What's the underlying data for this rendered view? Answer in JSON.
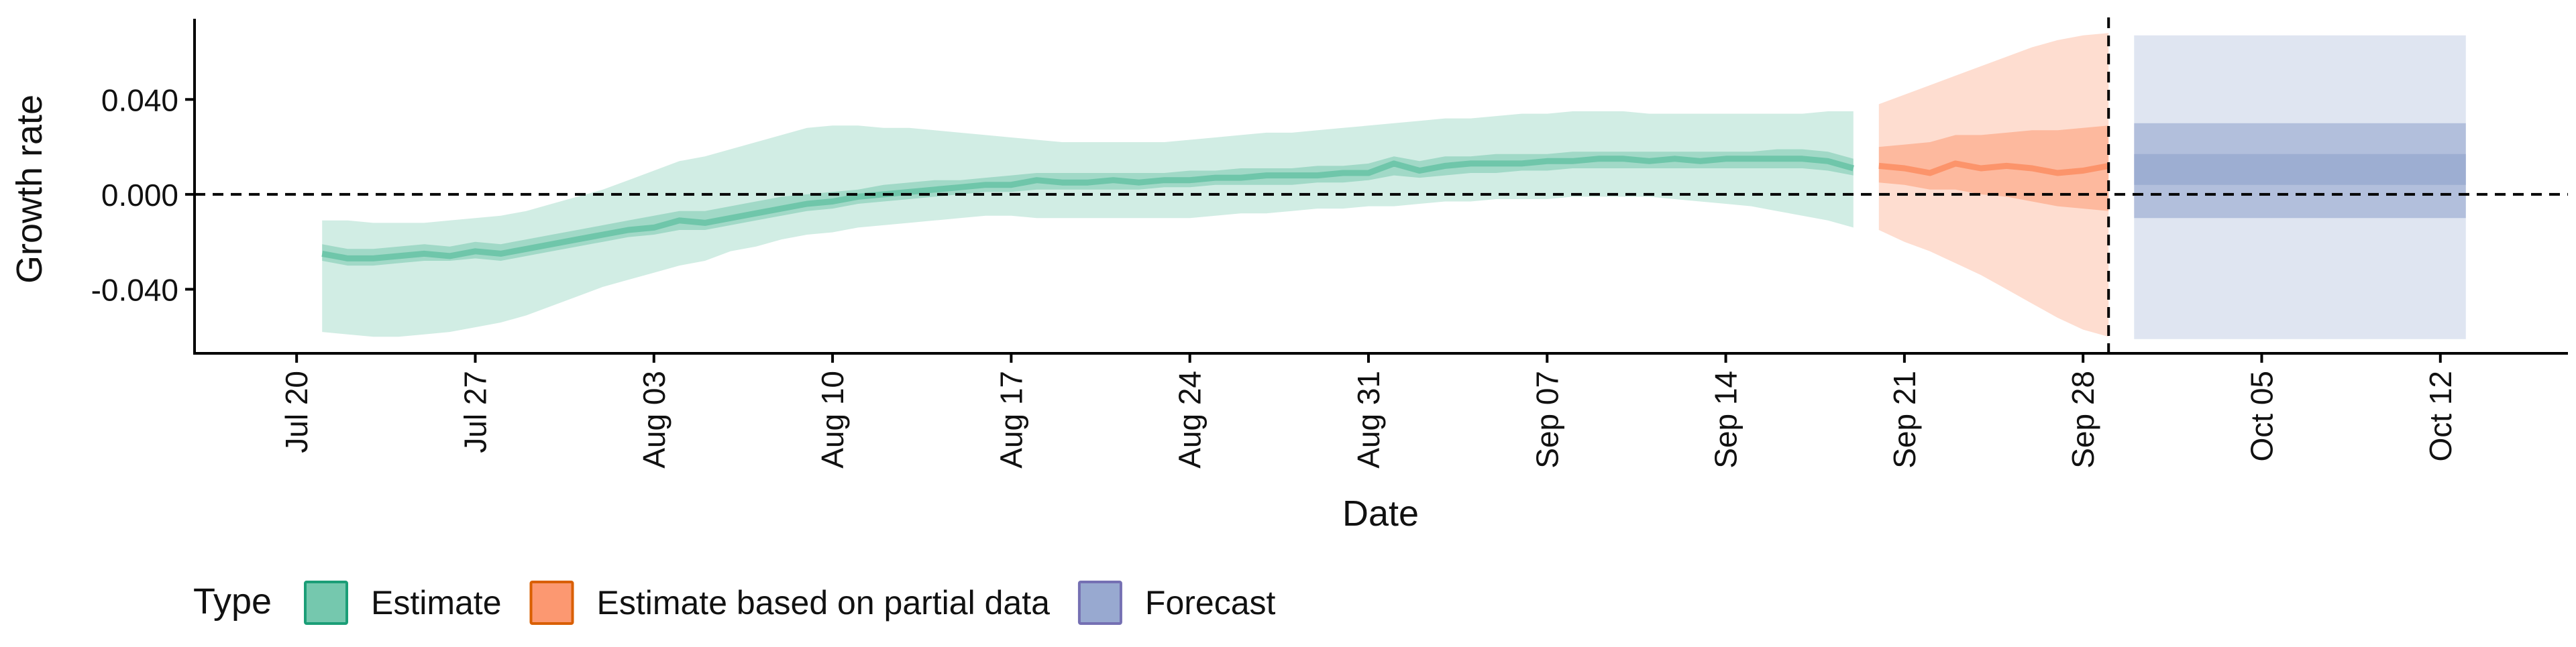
{
  "chart_data": {
    "type": "area",
    "title": "",
    "xlabel": "Date",
    "ylabel": "Growth rate",
    "x_type": "date",
    "xlim": [
      "2020-07-16",
      "2020-10-17"
    ],
    "ylim": [
      -0.067,
      0.074
    ],
    "x_ticks": [
      "2020-07-20",
      "2020-07-27",
      "2020-08-03",
      "2020-08-10",
      "2020-08-17",
      "2020-08-24",
      "2020-08-31",
      "2020-09-07",
      "2020-09-14",
      "2020-09-21",
      "2020-09-28",
      "2020-10-05",
      "2020-10-12"
    ],
    "x_tick_labels": [
      "Jul 20",
      "Jul 27",
      "Aug 03",
      "Aug 10",
      "Aug 17",
      "Aug 24",
      "Aug 31",
      "Sep 07",
      "Sep 14",
      "Sep 21",
      "Sep 28",
      "Oct 05",
      "Oct 12"
    ],
    "y_ticks": [
      0.04,
      0.0,
      -0.04
    ],
    "y_tick_labels": [
      "0.040",
      "0.000",
      "-0.040"
    ],
    "grid": false,
    "reference_lines": [
      {
        "orientation": "horizontal",
        "value": 0.0,
        "style": "dashed"
      },
      {
        "orientation": "vertical",
        "value": "2020-09-29",
        "style": "dashed"
      }
    ],
    "legend": {
      "position": "bottom-left",
      "title": "Type",
      "entries": [
        {
          "label": "Estimate",
          "color": "#1b9e77"
        },
        {
          "label": "Estimate based on partial data",
          "color": "#d95f02"
        },
        {
          "label": "Forecast",
          "color": "#7570b3"
        }
      ]
    },
    "series": [
      {
        "name": "Estimate",
        "fill": "#66c2a5",
        "stroke": "#1b9e77",
        "x": [
          "2020-07-21",
          "2020-07-22",
          "2020-07-23",
          "2020-07-24",
          "2020-07-25",
          "2020-07-26",
          "2020-07-27",
          "2020-07-28",
          "2020-07-29",
          "2020-07-30",
          "2020-07-31",
          "2020-08-01",
          "2020-08-02",
          "2020-08-03",
          "2020-08-04",
          "2020-08-05",
          "2020-08-06",
          "2020-08-07",
          "2020-08-08",
          "2020-08-09",
          "2020-08-10",
          "2020-08-11",
          "2020-08-12",
          "2020-08-13",
          "2020-08-14",
          "2020-08-15",
          "2020-08-16",
          "2020-08-17",
          "2020-08-18",
          "2020-08-19",
          "2020-08-20",
          "2020-08-21",
          "2020-08-22",
          "2020-08-23",
          "2020-08-24",
          "2020-08-25",
          "2020-08-26",
          "2020-08-27",
          "2020-08-28",
          "2020-08-29",
          "2020-08-30",
          "2020-08-31",
          "2020-09-01",
          "2020-09-02",
          "2020-09-03",
          "2020-09-04",
          "2020-09-05",
          "2020-09-06",
          "2020-09-07",
          "2020-09-08",
          "2020-09-09",
          "2020-09-10",
          "2020-09-11",
          "2020-09-12",
          "2020-09-13",
          "2020-09-14",
          "2020-09-15",
          "2020-09-16",
          "2020-09-17",
          "2020-09-18",
          "2020-09-19"
        ],
        "median": [
          -0.025,
          -0.027,
          -0.027,
          -0.026,
          -0.025,
          -0.026,
          -0.024,
          -0.025,
          -0.023,
          -0.021,
          -0.019,
          -0.017,
          -0.015,
          -0.014,
          -0.011,
          -0.012,
          -0.01,
          -0.008,
          -0.006,
          -0.004,
          -0.003,
          -0.001,
          0.0,
          0.001,
          0.002,
          0.003,
          0.004,
          0.004,
          0.006,
          0.005,
          0.005,
          0.006,
          0.005,
          0.006,
          0.006,
          0.007,
          0.007,
          0.008,
          0.008,
          0.008,
          0.009,
          0.009,
          0.013,
          0.01,
          0.012,
          0.013,
          0.013,
          0.013,
          0.014,
          0.014,
          0.015,
          0.015,
          0.014,
          0.015,
          0.014,
          0.015,
          0.015,
          0.015,
          0.015,
          0.014,
          0.011
        ],
        "lower_50": [
          -0.028,
          -0.03,
          -0.03,
          -0.029,
          -0.028,
          -0.028,
          -0.027,
          -0.028,
          -0.026,
          -0.024,
          -0.022,
          -0.02,
          -0.018,
          -0.017,
          -0.015,
          -0.015,
          -0.013,
          -0.011,
          -0.009,
          -0.007,
          -0.006,
          -0.004,
          -0.003,
          -0.002,
          -0.001,
          0.0,
          0.001,
          0.001,
          0.002,
          0.002,
          0.002,
          0.002,
          0.002,
          0.003,
          0.003,
          0.004,
          0.004,
          0.004,
          0.004,
          0.005,
          0.005,
          0.006,
          0.008,
          0.007,
          0.008,
          0.009,
          0.009,
          0.01,
          0.01,
          0.011,
          0.011,
          0.011,
          0.011,
          0.011,
          0.011,
          0.011,
          0.011,
          0.011,
          0.011,
          0.01,
          0.008
        ],
        "upper_50": [
          -0.021,
          -0.023,
          -0.023,
          -0.022,
          -0.021,
          -0.022,
          -0.02,
          -0.021,
          -0.019,
          -0.017,
          -0.015,
          -0.013,
          -0.011,
          -0.009,
          -0.007,
          -0.007,
          -0.005,
          -0.003,
          -0.001,
          0.0,
          0.001,
          0.002,
          0.004,
          0.005,
          0.006,
          0.006,
          0.007,
          0.008,
          0.009,
          0.009,
          0.009,
          0.009,
          0.009,
          0.009,
          0.01,
          0.01,
          0.011,
          0.011,
          0.011,
          0.012,
          0.012,
          0.013,
          0.016,
          0.014,
          0.016,
          0.016,
          0.017,
          0.017,
          0.017,
          0.018,
          0.018,
          0.018,
          0.018,
          0.018,
          0.018,
          0.018,
          0.018,
          0.019,
          0.019,
          0.018,
          0.015
        ],
        "lower_90": [
          -0.058,
          -0.059,
          -0.06,
          -0.06,
          -0.059,
          -0.058,
          -0.056,
          -0.054,
          -0.051,
          -0.047,
          -0.043,
          -0.039,
          -0.036,
          -0.033,
          -0.03,
          -0.028,
          -0.024,
          -0.022,
          -0.019,
          -0.017,
          -0.016,
          -0.014,
          -0.013,
          -0.012,
          -0.011,
          -0.01,
          -0.009,
          -0.009,
          -0.01,
          -0.01,
          -0.01,
          -0.01,
          -0.01,
          -0.01,
          -0.01,
          -0.009,
          -0.008,
          -0.008,
          -0.007,
          -0.006,
          -0.006,
          -0.005,
          -0.005,
          -0.004,
          -0.003,
          -0.003,
          -0.002,
          -0.002,
          -0.002,
          -0.001,
          -0.001,
          -0.001,
          -0.001,
          -0.002,
          -0.003,
          -0.004,
          -0.005,
          -0.007,
          -0.009,
          -0.011,
          -0.014
        ],
        "upper_90": [
          -0.011,
          -0.011,
          -0.012,
          -0.012,
          -0.012,
          -0.011,
          -0.01,
          -0.009,
          -0.007,
          -0.004,
          -0.001,
          0.002,
          0.006,
          0.01,
          0.014,
          0.016,
          0.019,
          0.022,
          0.025,
          0.028,
          0.029,
          0.029,
          0.028,
          0.028,
          0.027,
          0.026,
          0.025,
          0.024,
          0.023,
          0.022,
          0.022,
          0.022,
          0.022,
          0.022,
          0.023,
          0.024,
          0.025,
          0.026,
          0.026,
          0.027,
          0.028,
          0.029,
          0.03,
          0.031,
          0.032,
          0.032,
          0.033,
          0.034,
          0.034,
          0.035,
          0.035,
          0.035,
          0.034,
          0.034,
          0.034,
          0.034,
          0.034,
          0.034,
          0.034,
          0.035,
          0.035
        ]
      },
      {
        "name": "Estimate based on partial data",
        "fill": "#fc8d62",
        "stroke": "#d95f02",
        "x": [
          "2020-09-20",
          "2020-09-21",
          "2020-09-22",
          "2020-09-23",
          "2020-09-24",
          "2020-09-25",
          "2020-09-26",
          "2020-09-27",
          "2020-09-28",
          "2020-09-29"
        ],
        "median": [
          0.012,
          0.011,
          0.009,
          0.013,
          0.011,
          0.012,
          0.011,
          0.009,
          0.01,
          0.012
        ],
        "lower_50": [
          0.005,
          0.004,
          0.002,
          0.002,
          0.0,
          -0.001,
          -0.003,
          -0.005,
          -0.006,
          -0.007
        ],
        "upper_50": [
          0.02,
          0.021,
          0.022,
          0.025,
          0.025,
          0.026,
          0.027,
          0.027,
          0.028,
          0.029
        ],
        "lower_90": [
          -0.015,
          -0.02,
          -0.024,
          -0.029,
          -0.034,
          -0.04,
          -0.046,
          -0.052,
          -0.057,
          -0.06
        ],
        "upper_90": [
          0.038,
          0.042,
          0.046,
          0.05,
          0.054,
          0.058,
          0.062,
          0.065,
          0.067,
          0.068
        ]
      },
      {
        "name": "Forecast",
        "fill": "#8da0cb",
        "stroke": "#7570b3",
        "x": [
          "2020-09-30",
          "2020-10-13"
        ],
        "median": [
          0.017,
          0.017
        ],
        "lower_50": [
          0.004,
          0.004
        ],
        "upper_50": [
          0.017,
          0.017
        ],
        "lower_90": [
          -0.01,
          -0.01
        ],
        "upper_90": [
          0.03,
          0.03
        ],
        "lower_outer": [
          -0.061,
          -0.061
        ],
        "upper_outer": [
          0.067,
          0.067
        ]
      }
    ]
  }
}
